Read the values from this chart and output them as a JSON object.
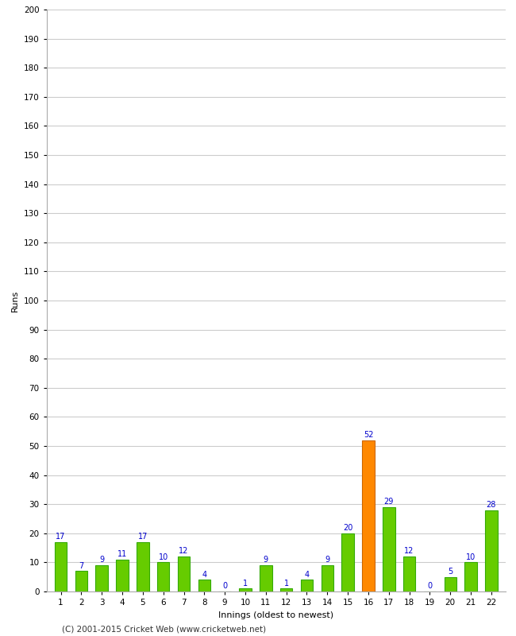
{
  "innings": [
    1,
    2,
    3,
    4,
    5,
    6,
    7,
    8,
    9,
    10,
    11,
    12,
    13,
    14,
    15,
    16,
    17,
    18,
    19,
    20,
    21,
    22
  ],
  "runs": [
    17,
    7,
    9,
    11,
    17,
    10,
    12,
    4,
    0,
    1,
    9,
    1,
    4,
    9,
    20,
    52,
    29,
    12,
    0,
    5,
    10,
    28
  ],
  "bar_colors": [
    "#66cc00",
    "#66cc00",
    "#66cc00",
    "#66cc00",
    "#66cc00",
    "#66cc00",
    "#66cc00",
    "#66cc00",
    "#66cc00",
    "#66cc00",
    "#66cc00",
    "#66cc00",
    "#66cc00",
    "#66cc00",
    "#66cc00",
    "#ff8800",
    "#66cc00",
    "#66cc00",
    "#66cc00",
    "#66cc00",
    "#66cc00",
    "#66cc00"
  ],
  "xlabel": "Innings (oldest to newest)",
  "ylabel": "Runs",
  "ylim": [
    0,
    200
  ],
  "yticks": [
    0,
    10,
    20,
    30,
    40,
    50,
    60,
    70,
    80,
    90,
    100,
    110,
    120,
    130,
    140,
    150,
    160,
    170,
    180,
    190,
    200
  ],
  "background_color": "#ffffff",
  "grid_color": "#cccccc",
  "label_color": "#0000cc",
  "footer": "(C) 2001-2015 Cricket Web (www.cricketweb.net)",
  "bar_edge_color": "#33aa00"
}
